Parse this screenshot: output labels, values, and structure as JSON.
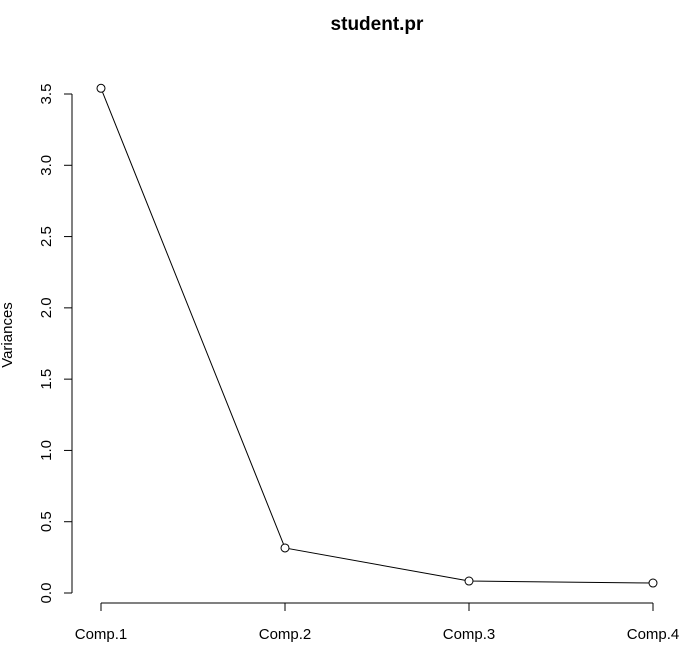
{
  "chart_data": {
    "type": "line",
    "title": "student.pr",
    "y_label": "Variances",
    "categories": [
      "Comp.1",
      "Comp.2",
      "Comp.3",
      "Comp.4"
    ],
    "values": [
      3.54,
      0.316,
      0.084,
      0.07
    ],
    "color": "#000000",
    "ylim": [
      0,
      3.5
    ],
    "yticks": [
      {
        "value": 0,
        "label": "0.0"
      },
      0.5,
      {
        "value": 1,
        "label": "1.0"
      },
      1.5,
      {
        "value": 2,
        "label": "2.0"
      },
      2.5,
      {
        "value": 3,
        "label": "3.0"
      },
      3.5
    ],
    "grid": false
  }
}
